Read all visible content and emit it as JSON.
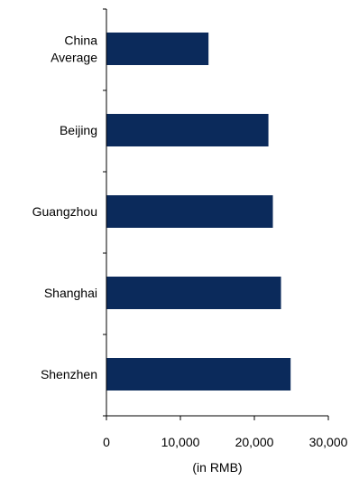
{
  "chart_data": {
    "type": "bar",
    "orientation": "horizontal",
    "categories": [
      "China Average",
      "Beijing",
      "Guangzhou",
      "Shanghai",
      "Shenzhen"
    ],
    "category_lines": [
      [
        "China",
        "Average"
      ],
      [
        "Beijing"
      ],
      [
        "Guangzhou"
      ],
      [
        "Shanghai"
      ],
      [
        "Shenzhen"
      ]
    ],
    "values": [
      13800,
      21900,
      22500,
      23600,
      24900
    ],
    "xlim": [
      0,
      30000
    ],
    "xticks": [
      0,
      10000,
      20000,
      30000
    ],
    "xtick_labels": [
      "0",
      "10,000",
      "20,000",
      "30,000"
    ],
    "xlabel": "(in RMB)",
    "bar_color": "#0b2a5b",
    "grid": false,
    "legend": "none"
  }
}
